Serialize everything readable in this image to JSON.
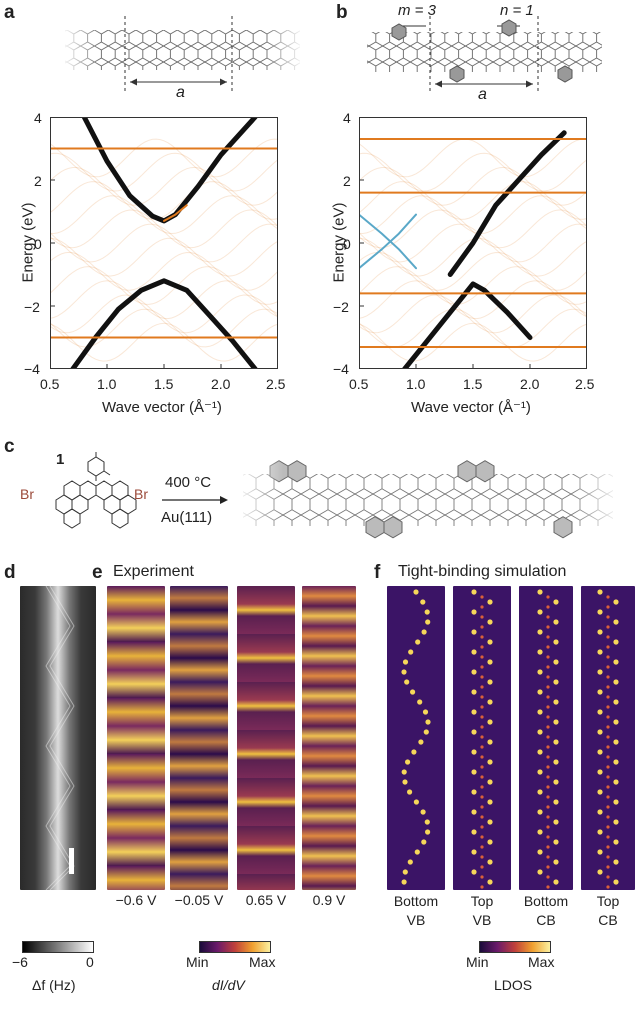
{
  "panels": {
    "a": "a",
    "b": "b",
    "c": "c",
    "d": "d",
    "e": "e",
    "f": "f"
  },
  "schematic_a": {
    "period_label": "a"
  },
  "schematic_b": {
    "m_label": "m = 3",
    "n_label": "n = 1",
    "period_label": "a"
  },
  "axes": {
    "xlabel": "Wave vector (Å⁻¹)",
    "ylabel": "Energy (eV)",
    "xticks": [
      "0.5",
      "1.0",
      "1.5",
      "2.0",
      "2.5"
    ],
    "yticks": [
      "4",
      "2",
      "0",
      "−2",
      "−4"
    ]
  },
  "chart_data": [
    {
      "type": "line",
      "panel": "a",
      "xlabel": "Wave vector (Å⁻¹)",
      "ylabel": "Energy (eV)",
      "xlim": [
        0.5,
        2.5
      ],
      "ylim": [
        -4,
        4
      ],
      "series": [
        {
          "kind": "dark",
          "points": [
            [
              0.8,
              4.0
            ],
            [
              1.0,
              2.6
            ],
            [
              1.2,
              1.5
            ],
            [
              1.4,
              0.85
            ],
            [
              1.5,
              0.7
            ],
            [
              1.6,
              0.9
            ],
            [
              1.8,
              1.8
            ],
            [
              2.0,
              2.8
            ],
            [
              2.3,
              4.0
            ]
          ]
        },
        {
          "kind": "dark",
          "points": [
            [
              0.7,
              -4.0
            ],
            [
              0.9,
              -3.0
            ],
            [
              1.1,
              -2.1
            ],
            [
              1.3,
              -1.5
            ],
            [
              1.5,
              -1.2
            ],
            [
              1.7,
              -1.5
            ],
            [
              1.9,
              -2.3
            ],
            [
              2.1,
              -3.1
            ],
            [
              2.3,
              -4.0
            ]
          ]
        },
        {
          "kind": "orange",
          "points": [
            [
              1.5,
              0.7
            ],
            [
              1.6,
              0.9
            ],
            [
              1.7,
              1.2
            ]
          ]
        },
        {
          "kind": "flat",
          "y": 3.0
        },
        {
          "kind": "flat",
          "y": -3.0
        }
      ]
    },
    {
      "type": "line",
      "panel": "b",
      "xlabel": "Wave vector (Å⁻¹)",
      "ylabel": "Energy (eV)",
      "xlim": [
        0.5,
        2.5
      ],
      "ylim": [
        -4,
        4
      ],
      "series": [
        {
          "kind": "dark",
          "points": [
            [
              0.9,
              -4.0
            ],
            [
              1.1,
              -3.1
            ],
            [
              1.3,
              -2.2
            ],
            [
              1.5,
              -1.3
            ],
            [
              1.6,
              -1.5
            ],
            [
              1.8,
              -2.2
            ],
            [
              2.0,
              -3.0
            ]
          ]
        },
        {
          "kind": "dark",
          "points": [
            [
              1.3,
              -1.0
            ],
            [
              1.5,
              0.0
            ],
            [
              1.6,
              0.6
            ],
            [
              1.7,
              1.2
            ],
            [
              1.9,
              2.0
            ],
            [
              2.1,
              2.8
            ],
            [
              2.3,
              3.5
            ]
          ]
        },
        {
          "kind": "blue",
          "points": [
            [
              0.5,
              0.9
            ],
            [
              0.7,
              0.3
            ],
            [
              0.85,
              -0.2
            ],
            [
              1.0,
              -0.8
            ]
          ]
        },
        {
          "kind": "blue",
          "points": [
            [
              0.5,
              -0.8
            ],
            [
              0.7,
              -0.2
            ],
            [
              0.85,
              0.3
            ],
            [
              1.0,
              0.9
            ]
          ]
        },
        {
          "kind": "flat",
          "y": 3.3
        },
        {
          "kind": "flat",
          "y": 1.6
        },
        {
          "kind": "flat",
          "y": -1.6
        },
        {
          "kind": "flat",
          "y": -3.3
        }
      ]
    }
  ],
  "reaction": {
    "compound": "1",
    "condition_top": "400 °C",
    "condition_bottom": "Au(111)",
    "br_left": "Br",
    "br_right": "Br"
  },
  "experiment": {
    "title": "Experiment",
    "biases": [
      "−0.6 V",
      "−0.05 V",
      "0.65 V",
      "0.9 V"
    ]
  },
  "simulation": {
    "title": "Tight-binding simulation",
    "bands": [
      [
        "Bottom",
        "VB"
      ],
      [
        "Top",
        "VB"
      ],
      [
        "Bottom",
        "CB"
      ],
      [
        "Top",
        "CB"
      ]
    ]
  },
  "colorbars": {
    "afm": {
      "min": "−6",
      "max": "0",
      "label": "Δf (Hz)"
    },
    "didv": {
      "min": "Min",
      "max": "Max",
      "label": "dI/dV"
    },
    "ldos": {
      "min": "Min",
      "max": "Max",
      "label": "LDOS"
    }
  },
  "colors": {
    "dark": "#111111",
    "orange": "#e07a1f",
    "blue": "#5aa8c8",
    "inferno_lo": "#2b0b4a",
    "inferno_hi": "#f6e06a"
  }
}
